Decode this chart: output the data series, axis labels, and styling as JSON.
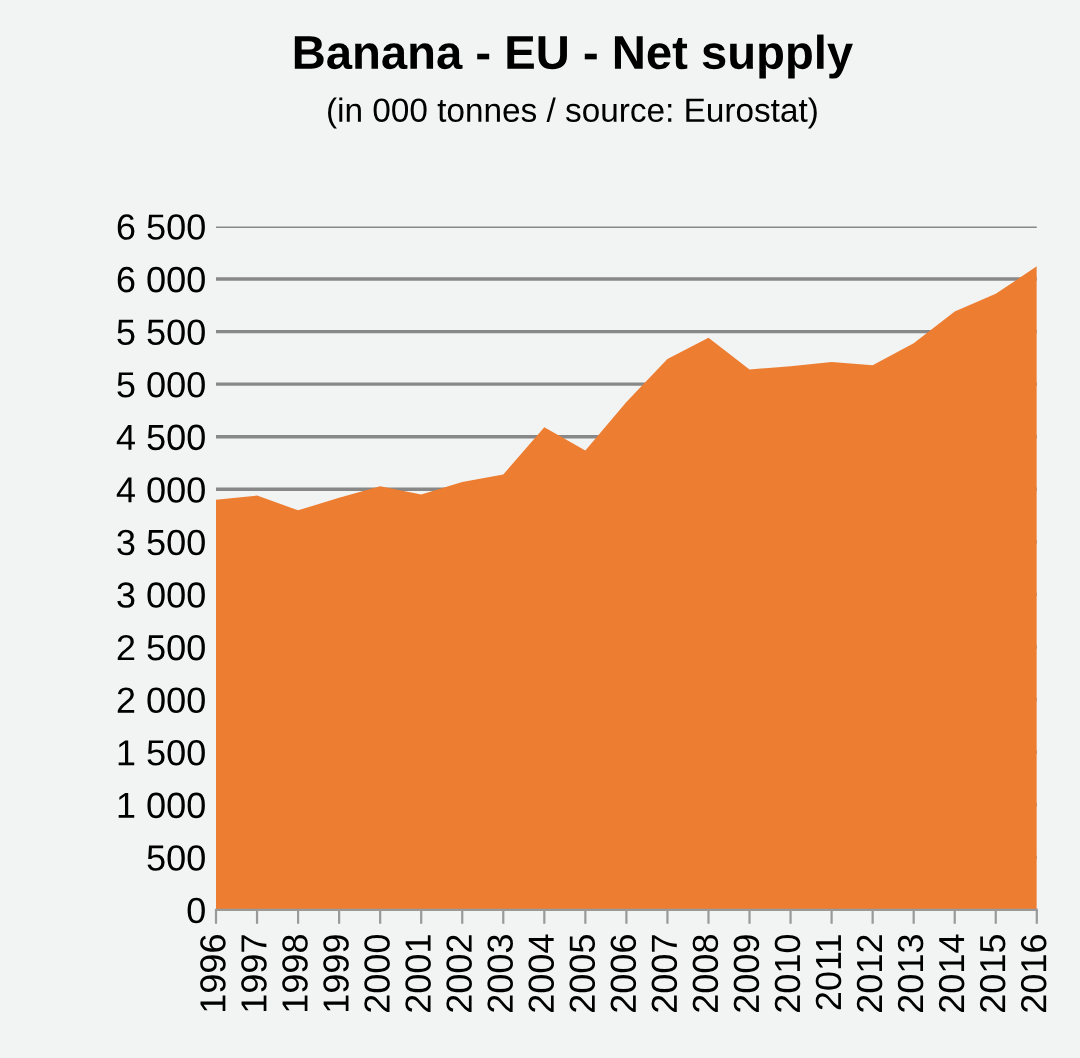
{
  "chart_data": {
    "type": "area",
    "title": "Banana - EU - Net supply",
    "subtitle": "(in 000 tonnes / source: Eurostat)",
    "categories": [
      "1996",
      "1997",
      "1998",
      "1999",
      "2000",
      "2001",
      "2002",
      "2003",
      "2004",
      "2005",
      "2006",
      "2007",
      "2008",
      "2009",
      "2010",
      "2011",
      "2012",
      "2013",
      "2014",
      "2015",
      "2016"
    ],
    "series": [
      {
        "color": "#ed7d31",
        "values": [
          3900,
          3940,
          3800,
          3920,
          4030,
          3950,
          4070,
          4140,
          4590,
          4370,
          4830,
          5240,
          5440,
          5140,
          5170,
          5210,
          5180,
          5390,
          5690,
          5860,
          6120
        ]
      }
    ],
    "ylim": [
      0,
      6500
    ],
    "yticks": [
      0,
      500,
      {
        "value": 1000,
        "label": "1 000"
      },
      {
        "value": 1500,
        "label": "1 500"
      },
      {
        "value": 2000,
        "label": "2 000"
      },
      {
        "value": 2500,
        "label": "2 500"
      },
      {
        "value": 3000,
        "label": "3 000"
      },
      {
        "value": 3500,
        "label": "3 500"
      },
      {
        "value": 4000,
        "label": "4 000"
      },
      {
        "value": 4500,
        "label": "4 500"
      },
      {
        "value": 5000,
        "label": "5 000"
      },
      {
        "value": 5500,
        "label": "5 500"
      },
      {
        "value": 6000,
        "label": "6 000"
      },
      {
        "value": 6500,
        "label": "6 500"
      }
    ],
    "grid": "y",
    "legend": false
  }
}
